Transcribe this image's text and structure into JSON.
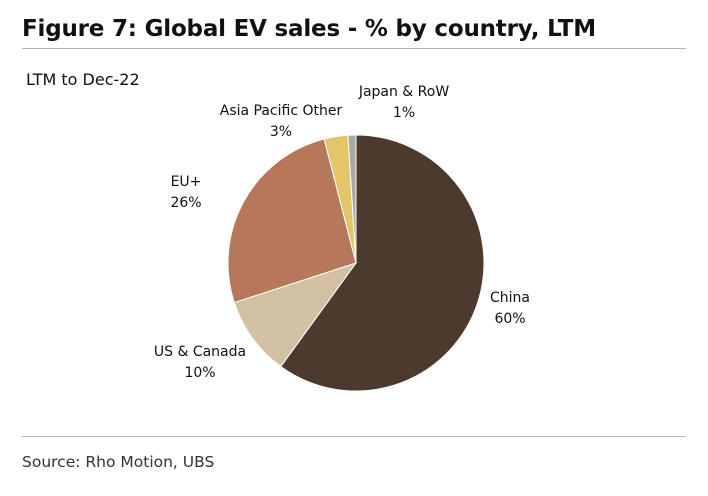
{
  "header": {
    "title": "Figure 7: Global EV sales - % by country, LTM"
  },
  "footer": {
    "source": "Source: Rho Motion, UBS"
  },
  "chart_data": {
    "type": "pie",
    "title": "Figure 7: Global EV sales - % by country, LTM",
    "subtitle": "LTM to Dec-22",
    "unit": "%",
    "start": "12 o'clock, clockwise",
    "slices": [
      {
        "label": "China",
        "value": 60,
        "value_label": "60%",
        "color": "#4b3a2d"
      },
      {
        "label": "US & Canada",
        "value": 10,
        "value_label": "10%",
        "color": "#d1c1a2"
      },
      {
        "label": "EU+",
        "value": 26,
        "value_label": "26%",
        "color": "#b6775a"
      },
      {
        "label": "Asia Pacific Other",
        "value": 3,
        "value_label": "3%",
        "color": "#e3c66a"
      },
      {
        "label": "Japan & RoW",
        "value": 1,
        "value_label": "1%",
        "color": "#a7a7a7"
      }
    ]
  }
}
